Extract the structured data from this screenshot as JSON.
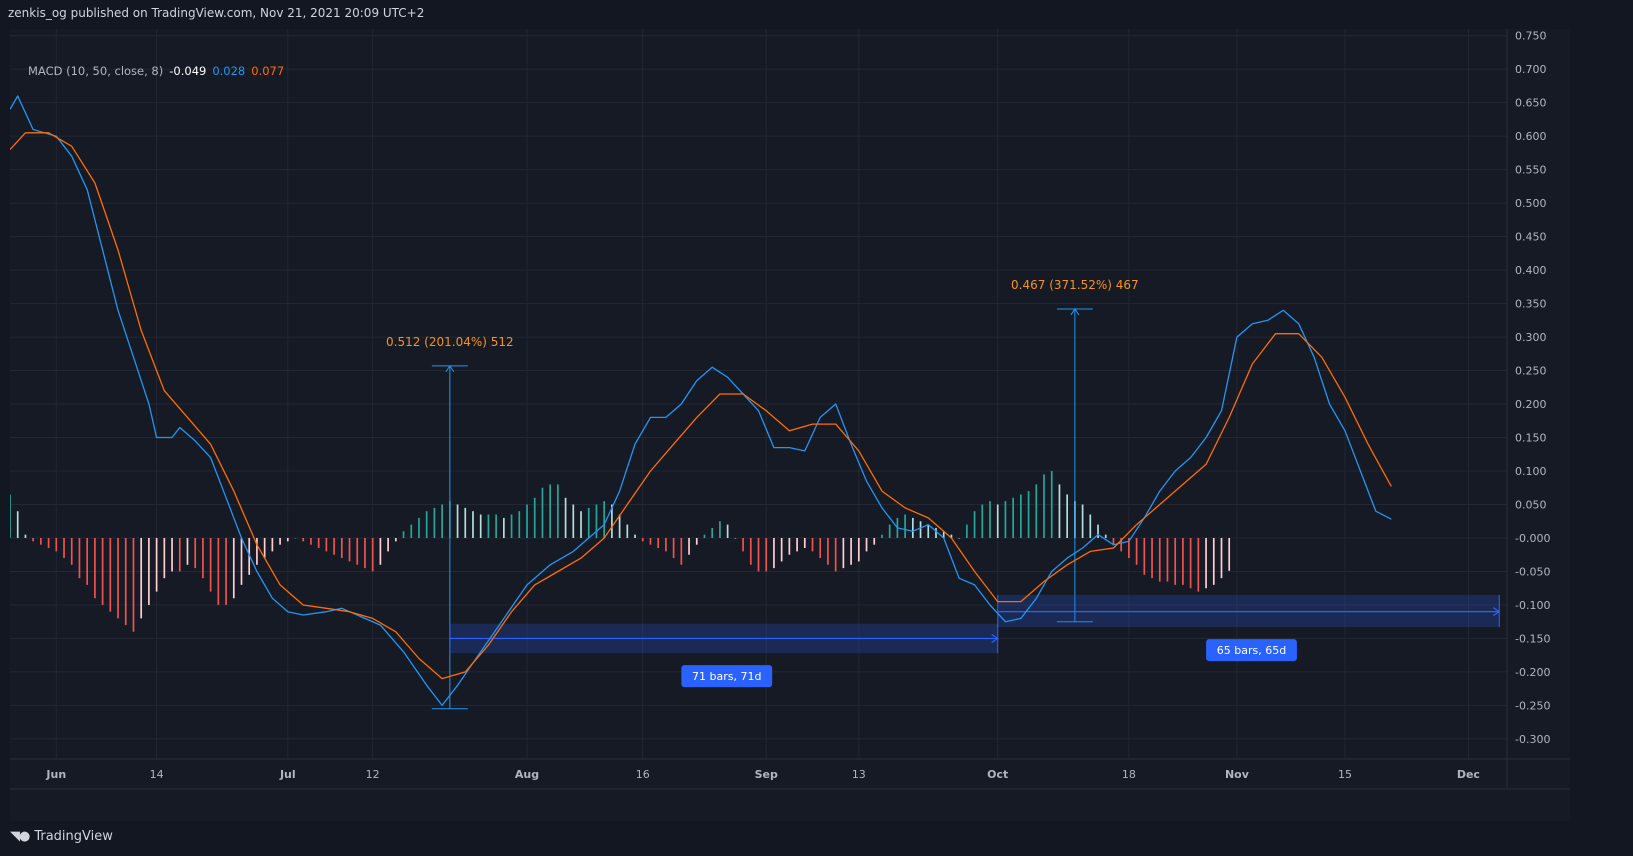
{
  "header": {
    "publish_info": "zenkis_og published on TradingView.com, Nov 21, 2021 20:09 UTC+2"
  },
  "legend": {
    "indicator": "MACD (10, 50, close, 8)",
    "histogram_value": "-0.049",
    "macd_value": "0.028",
    "signal_value": "0.077"
  },
  "footer": {
    "brand": "TradingView"
  },
  "colors": {
    "background": "#131722",
    "pane": "#161a25",
    "grid": "#232733",
    "axis_text": "#b2b5be",
    "macd_line": "#2196f3",
    "signal_line": "#ff6d00",
    "hist_pos_strong": "#26a69a",
    "hist_pos_weak": "#b2dfdb",
    "hist_neg_strong": "#ef5350",
    "hist_neg_weak": "#ffcdd2",
    "measure_blue": "#2962ff",
    "measure_text": "#f7931a"
  },
  "chart_data": {
    "type": "line",
    "title": "",
    "y_axis": {
      "min": -0.33,
      "max": 0.76,
      "position": "right",
      "ticks": [
        0.75,
        0.7,
        0.65,
        0.6,
        0.55,
        0.5,
        0.45,
        0.4,
        0.35,
        0.3,
        0.25,
        0.2,
        0.15,
        0.1,
        0.05,
        0.0,
        -0.05,
        -0.1,
        -0.15,
        -0.2,
        -0.25,
        -0.3
      ],
      "tick_labels": [
        "0.750",
        "0.700",
        "0.650",
        "0.600",
        "0.550",
        "0.500",
        "0.450",
        "0.400",
        "0.350",
        "0.300",
        "0.250",
        "0.200",
        "0.150",
        "0.100",
        "0.050",
        "-0.000",
        "-0.050",
        "-0.100",
        "-0.150",
        "-0.200",
        "-0.250",
        "-0.300"
      ]
    },
    "x_axis": {
      "start": "2021-05-26",
      "end": "2021-12-06",
      "tick_labels": [
        {
          "label": "Jun",
          "date": "2021-06-01",
          "bold": true
        },
        {
          "label": "14",
          "date": "2021-06-14",
          "bold": false
        },
        {
          "label": "Jul",
          "date": "2021-07-01",
          "bold": true
        },
        {
          "label": "12",
          "date": "2021-07-12",
          "bold": false
        },
        {
          "label": "Aug",
          "date": "2021-08-01",
          "bold": true
        },
        {
          "label": "16",
          "date": "2021-08-16",
          "bold": false
        },
        {
          "label": "Sep",
          "date": "2021-09-01",
          "bold": true
        },
        {
          "label": "13",
          "date": "2021-09-13",
          "bold": false
        },
        {
          "label": "Oct",
          "date": "2021-10-01",
          "bold": true
        },
        {
          "label": "18",
          "date": "2021-10-18",
          "bold": false
        },
        {
          "label": "Nov",
          "date": "2021-11-01",
          "bold": true
        },
        {
          "label": "15",
          "date": "2021-11-15",
          "bold": false
        },
        {
          "label": "Dec",
          "date": "2021-12-01",
          "bold": true
        }
      ]
    },
    "grid": true,
    "series": [
      {
        "name": "MACD",
        "color": "#2196f3",
        "points": [
          [
            "2021-05-26",
            0.64
          ],
          [
            "2021-05-27",
            0.66
          ],
          [
            "2021-05-29",
            0.61
          ],
          [
            "2021-06-01",
            0.6
          ],
          [
            "2021-06-03",
            0.57
          ],
          [
            "2021-06-05",
            0.52
          ],
          [
            "2021-06-07",
            0.43
          ],
          [
            "2021-06-09",
            0.34
          ],
          [
            "2021-06-11",
            0.27
          ],
          [
            "2021-06-13",
            0.2
          ],
          [
            "2021-06-14",
            0.15
          ],
          [
            "2021-06-16",
            0.15
          ],
          [
            "2021-06-17",
            0.165
          ],
          [
            "2021-06-19",
            0.145
          ],
          [
            "2021-06-21",
            0.12
          ],
          [
            "2021-06-23",
            0.06
          ],
          [
            "2021-06-25",
            0.0
          ],
          [
            "2021-06-27",
            -0.05
          ],
          [
            "2021-06-29",
            -0.09
          ],
          [
            "2021-07-01",
            -0.11
          ],
          [
            "2021-07-03",
            -0.115
          ],
          [
            "2021-07-06",
            -0.11
          ],
          [
            "2021-07-08",
            -0.105
          ],
          [
            "2021-07-10",
            -0.115
          ],
          [
            "2021-07-13",
            -0.13
          ],
          [
            "2021-07-16",
            -0.17
          ],
          [
            "2021-07-19",
            -0.22
          ],
          [
            "2021-07-21",
            -0.25
          ],
          [
            "2021-07-23",
            -0.22
          ],
          [
            "2021-07-26",
            -0.17
          ],
          [
            "2021-07-29",
            -0.12
          ],
          [
            "2021-08-01",
            -0.07
          ],
          [
            "2021-08-04",
            -0.04
          ],
          [
            "2021-08-07",
            -0.02
          ],
          [
            "2021-08-09",
            0.0
          ],
          [
            "2021-08-11",
            0.02
          ],
          [
            "2021-08-13",
            0.07
          ],
          [
            "2021-08-15",
            0.14
          ],
          [
            "2021-08-17",
            0.18
          ],
          [
            "2021-08-19",
            0.18
          ],
          [
            "2021-08-21",
            0.2
          ],
          [
            "2021-08-23",
            0.235
          ],
          [
            "2021-08-25",
            0.255
          ],
          [
            "2021-08-27",
            0.24
          ],
          [
            "2021-08-29",
            0.215
          ],
          [
            "2021-08-31",
            0.19
          ],
          [
            "2021-09-02",
            0.135
          ],
          [
            "2021-09-04",
            0.135
          ],
          [
            "2021-09-06",
            0.13
          ],
          [
            "2021-09-08",
            0.18
          ],
          [
            "2021-09-10",
            0.2
          ],
          [
            "2021-09-12",
            0.14
          ],
          [
            "2021-09-14",
            0.085
          ],
          [
            "2021-09-16",
            0.045
          ],
          [
            "2021-09-18",
            0.015
          ],
          [
            "2021-09-20",
            0.01
          ],
          [
            "2021-09-22",
            0.02
          ],
          [
            "2021-09-24",
            0.0
          ],
          [
            "2021-09-26",
            -0.06
          ],
          [
            "2021-09-28",
            -0.07
          ],
          [
            "2021-09-30",
            -0.1
          ],
          [
            "2021-10-02",
            -0.125
          ],
          [
            "2021-10-04",
            -0.12
          ],
          [
            "2021-10-06",
            -0.09
          ],
          [
            "2021-10-08",
            -0.05
          ],
          [
            "2021-10-10",
            -0.03
          ],
          [
            "2021-10-12",
            -0.015
          ],
          [
            "2021-10-14",
            0.005
          ],
          [
            "2021-10-16",
            -0.01
          ],
          [
            "2021-10-18",
            -0.005
          ],
          [
            "2021-10-20",
            0.03
          ],
          [
            "2021-10-22",
            0.07
          ],
          [
            "2021-10-24",
            0.1
          ],
          [
            "2021-10-26",
            0.12
          ],
          [
            "2021-10-28",
            0.15
          ],
          [
            "2021-10-30",
            0.19
          ],
          [
            "2021-11-01",
            0.3
          ],
          [
            "2021-11-03",
            0.32
          ],
          [
            "2021-11-05",
            0.325
          ],
          [
            "2021-11-07",
            0.34
          ],
          [
            "2021-11-09",
            0.32
          ],
          [
            "2021-11-11",
            0.27
          ],
          [
            "2021-11-13",
            0.2
          ],
          [
            "2021-11-15",
            0.16
          ],
          [
            "2021-11-17",
            0.1
          ],
          [
            "2021-11-19",
            0.04
          ],
          [
            "2021-11-21",
            0.028
          ]
        ]
      },
      {
        "name": "Signal",
        "color": "#ff6d00",
        "points": [
          [
            "2021-05-26",
            0.58
          ],
          [
            "2021-05-28",
            0.605
          ],
          [
            "2021-05-31",
            0.605
          ],
          [
            "2021-06-03",
            0.585
          ],
          [
            "2021-06-06",
            0.53
          ],
          [
            "2021-06-09",
            0.43
          ],
          [
            "2021-06-12",
            0.31
          ],
          [
            "2021-06-15",
            0.22
          ],
          [
            "2021-06-18",
            0.18
          ],
          [
            "2021-06-21",
            0.14
          ],
          [
            "2021-06-24",
            0.07
          ],
          [
            "2021-06-27",
            -0.01
          ],
          [
            "2021-06-30",
            -0.07
          ],
          [
            "2021-07-03",
            -0.1
          ],
          [
            "2021-07-06",
            -0.105
          ],
          [
            "2021-07-09",
            -0.11
          ],
          [
            "2021-07-12",
            -0.12
          ],
          [
            "2021-07-15",
            -0.14
          ],
          [
            "2021-07-18",
            -0.18
          ],
          [
            "2021-07-21",
            -0.21
          ],
          [
            "2021-07-24",
            -0.2
          ],
          [
            "2021-07-27",
            -0.16
          ],
          [
            "2021-07-30",
            -0.11
          ],
          [
            "2021-08-02",
            -0.07
          ],
          [
            "2021-08-05",
            -0.05
          ],
          [
            "2021-08-08",
            -0.03
          ],
          [
            "2021-08-11",
            0.0
          ],
          [
            "2021-08-14",
            0.05
          ],
          [
            "2021-08-17",
            0.1
          ],
          [
            "2021-08-20",
            0.14
          ],
          [
            "2021-08-23",
            0.18
          ],
          [
            "2021-08-26",
            0.215
          ],
          [
            "2021-08-29",
            0.215
          ],
          [
            "2021-09-01",
            0.19
          ],
          [
            "2021-09-04",
            0.16
          ],
          [
            "2021-09-07",
            0.17
          ],
          [
            "2021-09-10",
            0.17
          ],
          [
            "2021-09-13",
            0.13
          ],
          [
            "2021-09-16",
            0.07
          ],
          [
            "2021-09-19",
            0.045
          ],
          [
            "2021-09-22",
            0.03
          ],
          [
            "2021-09-25",
            0.0
          ],
          [
            "2021-09-28",
            -0.05
          ],
          [
            "2021-10-01",
            -0.095
          ],
          [
            "2021-10-04",
            -0.095
          ],
          [
            "2021-10-07",
            -0.065
          ],
          [
            "2021-10-10",
            -0.04
          ],
          [
            "2021-10-13",
            -0.02
          ],
          [
            "2021-10-16",
            -0.015
          ],
          [
            "2021-10-19",
            0.02
          ],
          [
            "2021-10-22",
            0.05
          ],
          [
            "2021-10-25",
            0.08
          ],
          [
            "2021-10-28",
            0.11
          ],
          [
            "2021-10-31",
            0.18
          ],
          [
            "2021-11-03",
            0.26
          ],
          [
            "2021-11-06",
            0.305
          ],
          [
            "2021-11-09",
            0.305
          ],
          [
            "2021-11-12",
            0.27
          ],
          [
            "2021-11-15",
            0.21
          ],
          [
            "2021-11-18",
            0.14
          ],
          [
            "2021-11-21",
            0.077
          ]
        ]
      }
    ],
    "histogram": {
      "name": "Histogram",
      "start": "2021-05-26",
      "step_days": 1,
      "values": [
        0.065,
        0.04,
        0.005,
        -0.005,
        -0.01,
        -0.015,
        -0.02,
        -0.03,
        -0.04,
        -0.06,
        -0.07,
        -0.09,
        -0.1,
        -0.11,
        -0.12,
        -0.13,
        -0.14,
        -0.12,
        -0.1,
        -0.08,
        -0.06,
        -0.05,
        -0.05,
        -0.04,
        -0.045,
        -0.06,
        -0.08,
        -0.1,
        -0.1,
        -0.09,
        -0.07,
        -0.055,
        -0.04,
        -0.03,
        -0.02,
        -0.01,
        -0.005,
        0.0,
        -0.005,
        -0.01,
        -0.015,
        -0.02,
        -0.025,
        -0.03,
        -0.035,
        -0.04,
        -0.045,
        -0.05,
        -0.04,
        -0.02,
        -0.005,
        0.01,
        0.02,
        0.03,
        0.04,
        0.045,
        0.05,
        0.055,
        0.05,
        0.045,
        0.04,
        0.035,
        0.035,
        0.035,
        0.03,
        0.035,
        0.04,
        0.05,
        0.06,
        0.075,
        0.08,
        0.08,
        0.06,
        0.05,
        0.04,
        0.045,
        0.05,
        0.055,
        0.05,
        0.035,
        0.02,
        0.005,
        -0.005,
        -0.01,
        -0.015,
        -0.02,
        -0.03,
        -0.04,
        -0.025,
        -0.01,
        0.005,
        0.015,
        0.025,
        0.02,
        0.0,
        -0.02,
        -0.04,
        -0.05,
        -0.05,
        -0.045,
        -0.035,
        -0.025,
        -0.02,
        -0.015,
        -0.02,
        -0.03,
        -0.04,
        -0.05,
        -0.045,
        -0.04,
        -0.035,
        -0.02,
        -0.01,
        0.005,
        0.02,
        0.03,
        0.035,
        0.03,
        0.025,
        0.02,
        0.015,
        0.01,
        0.005,
        0.0,
        0.02,
        0.04,
        0.05,
        0.055,
        0.05,
        0.055,
        0.06,
        0.065,
        0.07,
        0.08,
        0.095,
        0.1,
        0.08,
        0.065,
        0.055,
        0.05,
        0.035,
        0.02,
        0.005,
        -0.01,
        -0.02,
        -0.03,
        -0.04,
        -0.055,
        -0.06,
        -0.065,
        -0.065,
        -0.07,
        -0.07,
        -0.075,
        -0.08,
        -0.075,
        -0.07,
        -0.06,
        -0.049
      ]
    },
    "annotations": [
      {
        "kind": "price-range",
        "label": "0.512 (201.04%) 512",
        "date": "2021-07-22",
        "from": -0.255,
        "to": 0.257
      },
      {
        "kind": "date-range",
        "label": "71 bars, 71d",
        "from": "2021-07-22",
        "to": "2021-10-01",
        "y_from": -0.172,
        "y_to": -0.128,
        "y_arrow": -0.15
      },
      {
        "kind": "price-range",
        "label": "0.467 (371.52%) 467",
        "date": "2021-10-11",
        "from": -0.125,
        "to": 0.342
      },
      {
        "kind": "date-range",
        "label": "65 bars, 65d",
        "from": "2021-10-01",
        "to": "2021-12-05",
        "y_from": -0.133,
        "y_to": -0.085,
        "y_arrow": -0.11
      }
    ]
  }
}
